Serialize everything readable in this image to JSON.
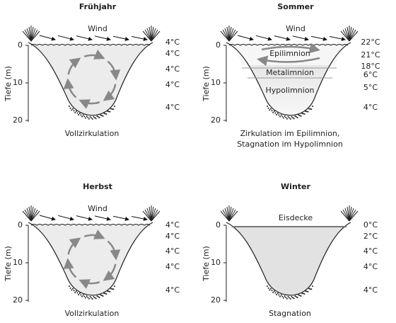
{
  "panels": [
    {
      "title": "Frühjahr",
      "top_label": "Wind",
      "axis_label": "Tiefe (m)",
      "depth_ticks": [
        "0",
        "10",
        "20"
      ],
      "temperatures": [
        "4°C",
        "4°C",
        "4°C",
        "4°C",
        "4°C"
      ],
      "caption": [
        "Vollzirkulation"
      ]
    },
    {
      "title": "Sommer",
      "top_label": "Wind",
      "axis_label": "Tiefe (m)",
      "depth_ticks": [
        "0",
        "10",
        "20"
      ],
      "layers": [
        "Epilimnion",
        "Metalimnion",
        "Hypolimnion"
      ],
      "temperatures": [
        "22°C",
        "21°C",
        "18°C",
        "6°C",
        "5°C",
        "4°C"
      ],
      "caption": [
        "Zirkulation im Epilimnion,",
        "Stagnation im Hypolimnion"
      ]
    },
    {
      "title": "Herbst",
      "top_label": "Wind",
      "axis_label": "Tiefe (m)",
      "depth_ticks": [
        "0",
        "10",
        "20"
      ],
      "temperatures": [
        "4°C",
        "4°C",
        "4°C",
        "4°C",
        "4°C"
      ],
      "caption": [
        "Vollzirkulation"
      ]
    },
    {
      "title": "Winter",
      "top_label": "Eisdecke",
      "axis_label": "Tiefe (m)",
      "depth_ticks": [
        "0",
        "10",
        "20"
      ],
      "temperatures": [
        "0°C",
        "2°C",
        "4°C",
        "4°C",
        "4°C"
      ],
      "caption": [
        "Stagnation"
      ]
    }
  ]
}
